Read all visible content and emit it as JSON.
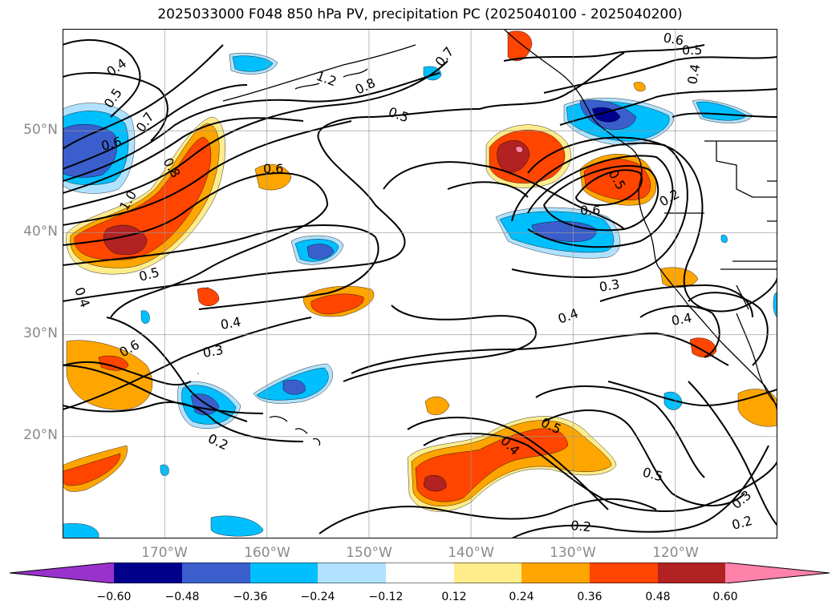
{
  "title": "2025033000 F048 850 hPa PV, precipitation PC (2025040100 - 2025040200)",
  "map": {
    "projection": "cylindrical",
    "lon_range": [
      -180,
      -110
    ],
    "lat_range": [
      10,
      60
    ],
    "gridlines": true,
    "lat_ticks": [
      {
        "lat": 50,
        "label": "50°N"
      },
      {
        "lat": 40,
        "label": "40°N"
      },
      {
        "lat": 30,
        "label": "30°N"
      },
      {
        "lat": 20,
        "label": "20°N"
      }
    ],
    "lon_ticks": [
      {
        "lon": -170,
        "label": "170°W"
      },
      {
        "lon": -160,
        "label": "160°W"
      },
      {
        "lon": -150,
        "label": "150°W"
      },
      {
        "lon": -140,
        "label": "140°W"
      },
      {
        "lon": -130,
        "label": "130°W"
      },
      {
        "lon": -120,
        "label": "120°W"
      }
    ],
    "contour_color": "#000000",
    "contour_labels": [
      "0.4",
      "0.5",
      "0.7",
      "0.6",
      "0.8",
      "1.0",
      "1.2",
      "0.8",
      "0.5",
      "0.7",
      "0.6",
      "0.5",
      "0.4",
      "0.6",
      "0.5",
      "0.6",
      "0.2",
      "0.5",
      "0.4",
      "0.6",
      "0.4",
      "0.3",
      "0.3",
      "0.4",
      "0.4",
      "0.2",
      "0.5",
      "0.4",
      "0.5",
      "0.2",
      "0.3",
      "0.2"
    ]
  },
  "colorbar": {
    "levels": [
      -0.6,
      -0.48,
      -0.36,
      -0.24,
      -0.12,
      0.12,
      0.24,
      0.36,
      0.48,
      0.6
    ],
    "tick_labels": [
      "−0.60",
      "−0.48",
      "−0.36",
      "−0.24",
      "−0.12",
      "0.12",
      "0.24",
      "0.36",
      "0.48",
      "0.60"
    ],
    "colors": [
      "#9932cc",
      "#00008b",
      "#3a5fcd",
      "#00bfff",
      "#b0e2ff",
      "#ffffff",
      "#ffec8b",
      "#ffa500",
      "#ff4500",
      "#b22222",
      "#ff82ab"
    ],
    "extend": "both"
  }
}
